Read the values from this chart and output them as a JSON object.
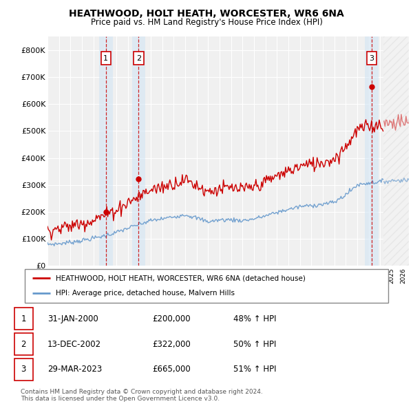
{
  "title": "HEATHWOOD, HOLT HEATH, WORCESTER, WR6 6NA",
  "subtitle": "Price paid vs. HM Land Registry's House Price Index (HPI)",
  "ylim": [
    0,
    850000
  ],
  "yticks": [
    0,
    100000,
    200000,
    300000,
    400000,
    500000,
    600000,
    700000,
    800000
  ],
  "ytick_labels": [
    "£0",
    "£100K",
    "£200K",
    "£300K",
    "£400K",
    "£500K",
    "£600K",
    "£700K",
    "£800K"
  ],
  "background_color": "#ffffff",
  "plot_bg_color": "#f0f0f0",
  "grid_color": "#ffffff",
  "red_line_color": "#cc0000",
  "blue_line_color": "#6699cc",
  "sale_vline_color": "#cc0000",
  "sale_box_color": "#cc0000",
  "sale_col_color": "#d0e4f5",
  "hatch_color": "#cccccc",
  "sales": [
    {
      "label": "1",
      "date": "31-JAN-2000",
      "price": 200000,
      "hpi_pct": "48%",
      "x_year": 2000.08
    },
    {
      "label": "2",
      "date": "13-DEC-2002",
      "price": 322000,
      "hpi_pct": "50%",
      "x_year": 2002.95
    },
    {
      "label": "3",
      "date": "29-MAR-2023",
      "price": 665000,
      "hpi_pct": "51%",
      "x_year": 2023.25
    }
  ],
  "legend_line1": "HEATHWOOD, HOLT HEATH, WORCESTER, WR6 6NA (detached house)",
  "legend_line2": "HPI: Average price, detached house, Malvern Hills",
  "copyright_text": "Contains HM Land Registry data © Crown copyright and database right 2024.\nThis data is licensed under the Open Government Licence v3.0.",
  "xmin": 1995.0,
  "xmax": 2026.5,
  "current_year": 2024.3,
  "hpi_milestones": {
    "1995": 100,
    "1996": 103,
    "1997": 110,
    "1998": 118,
    "1999": 128,
    "2000": 140,
    "2001": 155,
    "2002": 175,
    "2003": 192,
    "2004": 210,
    "2005": 218,
    "2006": 228,
    "2007": 238,
    "2008": 222,
    "2009": 205,
    "2010": 213,
    "2011": 214,
    "2012": 210,
    "2013": 218,
    "2014": 232,
    "2015": 248,
    "2016": 262,
    "2017": 275,
    "2018": 280,
    "2019": 286,
    "2020": 295,
    "2021": 330,
    "2022": 375,
    "2023": 385,
    "2024": 390,
    "2025": 395,
    "2026": 398,
    "2027": 400
  },
  "red_base_1995": 125000,
  "blue_base_1995": 80000,
  "red_noise_std": 12000,
  "blue_noise_std": 4000
}
